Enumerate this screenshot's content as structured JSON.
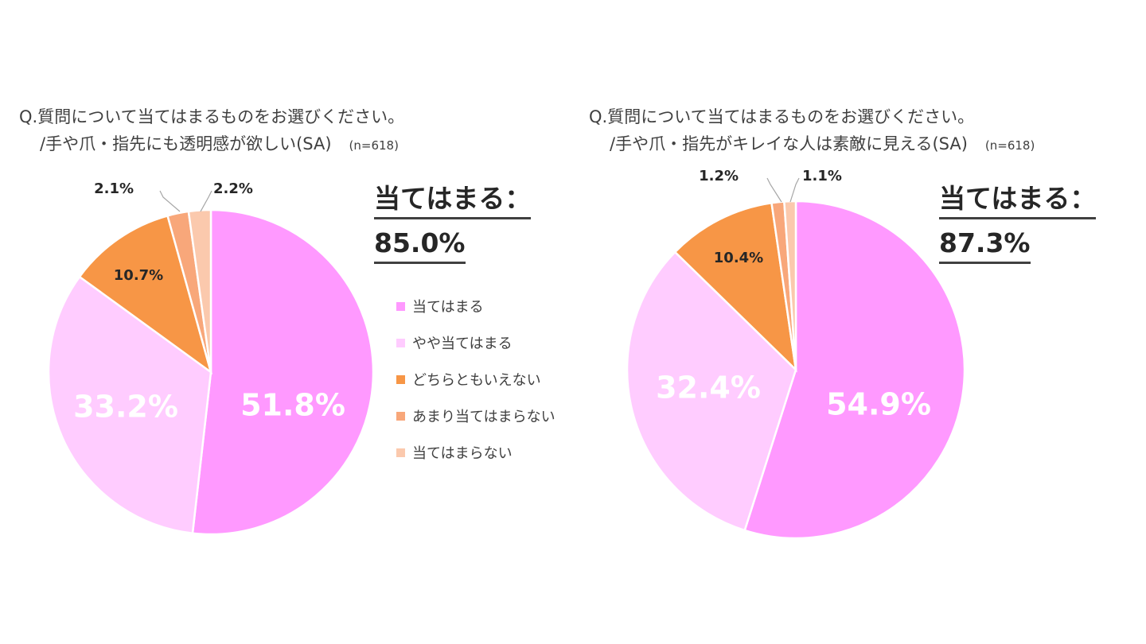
{
  "charts": [
    {
      "id": "left",
      "question": "Q.質問について当てはまるものをお選びください。",
      "subquestion": "/手や爪・指先にも透明感が欲しい(SA)",
      "sample": "(n=618)",
      "summary_label": "当てはまる：",
      "summary_value": "85.0%"
    },
    {
      "id": "right",
      "question": "Q.質問について当てはまるものをお選びください。",
      "subquestion": "/手や爪・指先がキレイな人は素敵に見える(SA)",
      "sample": "(n=618)",
      "summary_label": "当てはまる：",
      "summary_value": "87.3%"
    }
  ],
  "legend": [
    {
      "label": "当てはまる",
      "color": "#ff99ff"
    },
    {
      "label": "やや当てはまる",
      "color": "#ffccff"
    },
    {
      "label": "どちらともいえない",
      "color": "#f79646"
    },
    {
      "label": "あまり当てはまらない",
      "color": "#f8a77a"
    },
    {
      "label": "当てはまらない",
      "color": "#fbc9ad"
    }
  ],
  "chart_data": [
    {
      "type": "pie",
      "title": "Q.質問について当てはまるものをお選びください。/手や爪・指先にも透明感が欲しい(SA)",
      "categories": [
        "当てはまる",
        "やや当てはまる",
        "どちらともいえない",
        "あまり当てはまらない",
        "当てはまらない"
      ],
      "values": [
        51.8,
        33.2,
        10.7,
        2.1,
        2.2
      ],
      "labels": [
        "51.8%",
        "33.2%",
        "10.7%",
        "2.1%",
        "2.2%"
      ],
      "colors": [
        "#ff99ff",
        "#ffccff",
        "#f79646",
        "#f8a77a",
        "#fbc9ad"
      ],
      "legend": "right"
    },
    {
      "type": "pie",
      "title": "Q.質問について当てはまるものをお選びください。/手や爪・指先がキレイな人は素敵に見える(SA)",
      "categories": [
        "当てはまる",
        "やや当てはまる",
        "どちらともいえない",
        "あまり当てはまらない",
        "当てはまらない"
      ],
      "values": [
        54.9,
        32.4,
        10.4,
        1.2,
        1.1
      ],
      "labels": [
        "54.9%",
        "32.4%",
        "10.4%",
        "1.2%",
        "1.1%"
      ],
      "colors": [
        "#ff99ff",
        "#ffccff",
        "#f79646",
        "#f8a77a",
        "#fbc9ad"
      ],
      "legend": "none"
    }
  ]
}
